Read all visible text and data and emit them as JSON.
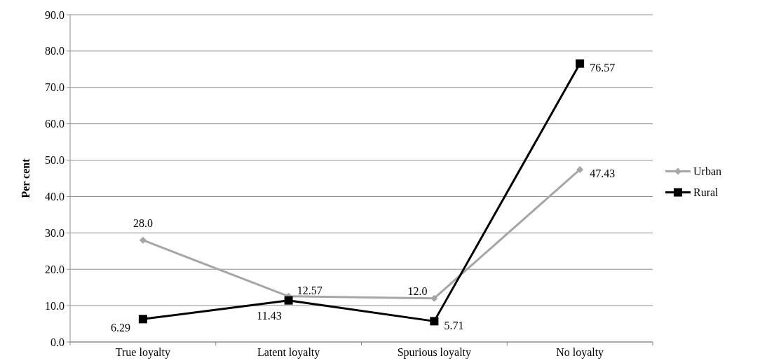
{
  "chart_data": {
    "type": "line",
    "ylabel": "Per cent",
    "categories": [
      "True loyalty",
      "Latent loyalty",
      "Spurious loyalty",
      "No loyalty"
    ],
    "series": [
      {
        "name": "Urban",
        "color": "#a6a6a6",
        "marker": "diamond",
        "values": [
          28.0,
          12.57,
          12.0,
          47.43
        ],
        "value_labels": [
          "28.0",
          "12.57",
          "12.0",
          "47.43"
        ]
      },
      {
        "name": "Rural",
        "color": "#000000",
        "marker": "square",
        "values": [
          6.29,
          11.43,
          5.71,
          76.57
        ],
        "value_labels": [
          "6.29",
          "11.43",
          "5.71",
          "76.57"
        ]
      }
    ],
    "ylim": [
      0,
      90
    ],
    "yticks": [
      {
        "value": 0,
        "label": "0.0"
      },
      {
        "value": 10,
        "label": "10.0"
      },
      {
        "value": 20,
        "label": "20.0"
      },
      {
        "value": 30,
        "label": "30.0"
      },
      {
        "value": 40,
        "label": "40.0"
      },
      {
        "value": 50,
        "label": "50.0"
      },
      {
        "value": 60,
        "label": "60.0"
      },
      {
        "value": 70,
        "label": "70.0"
      },
      {
        "value": 80,
        "label": "80.0"
      },
      {
        "value": 90,
        "label": "90.0"
      }
    ],
    "grid": "y",
    "legend": "right"
  }
}
